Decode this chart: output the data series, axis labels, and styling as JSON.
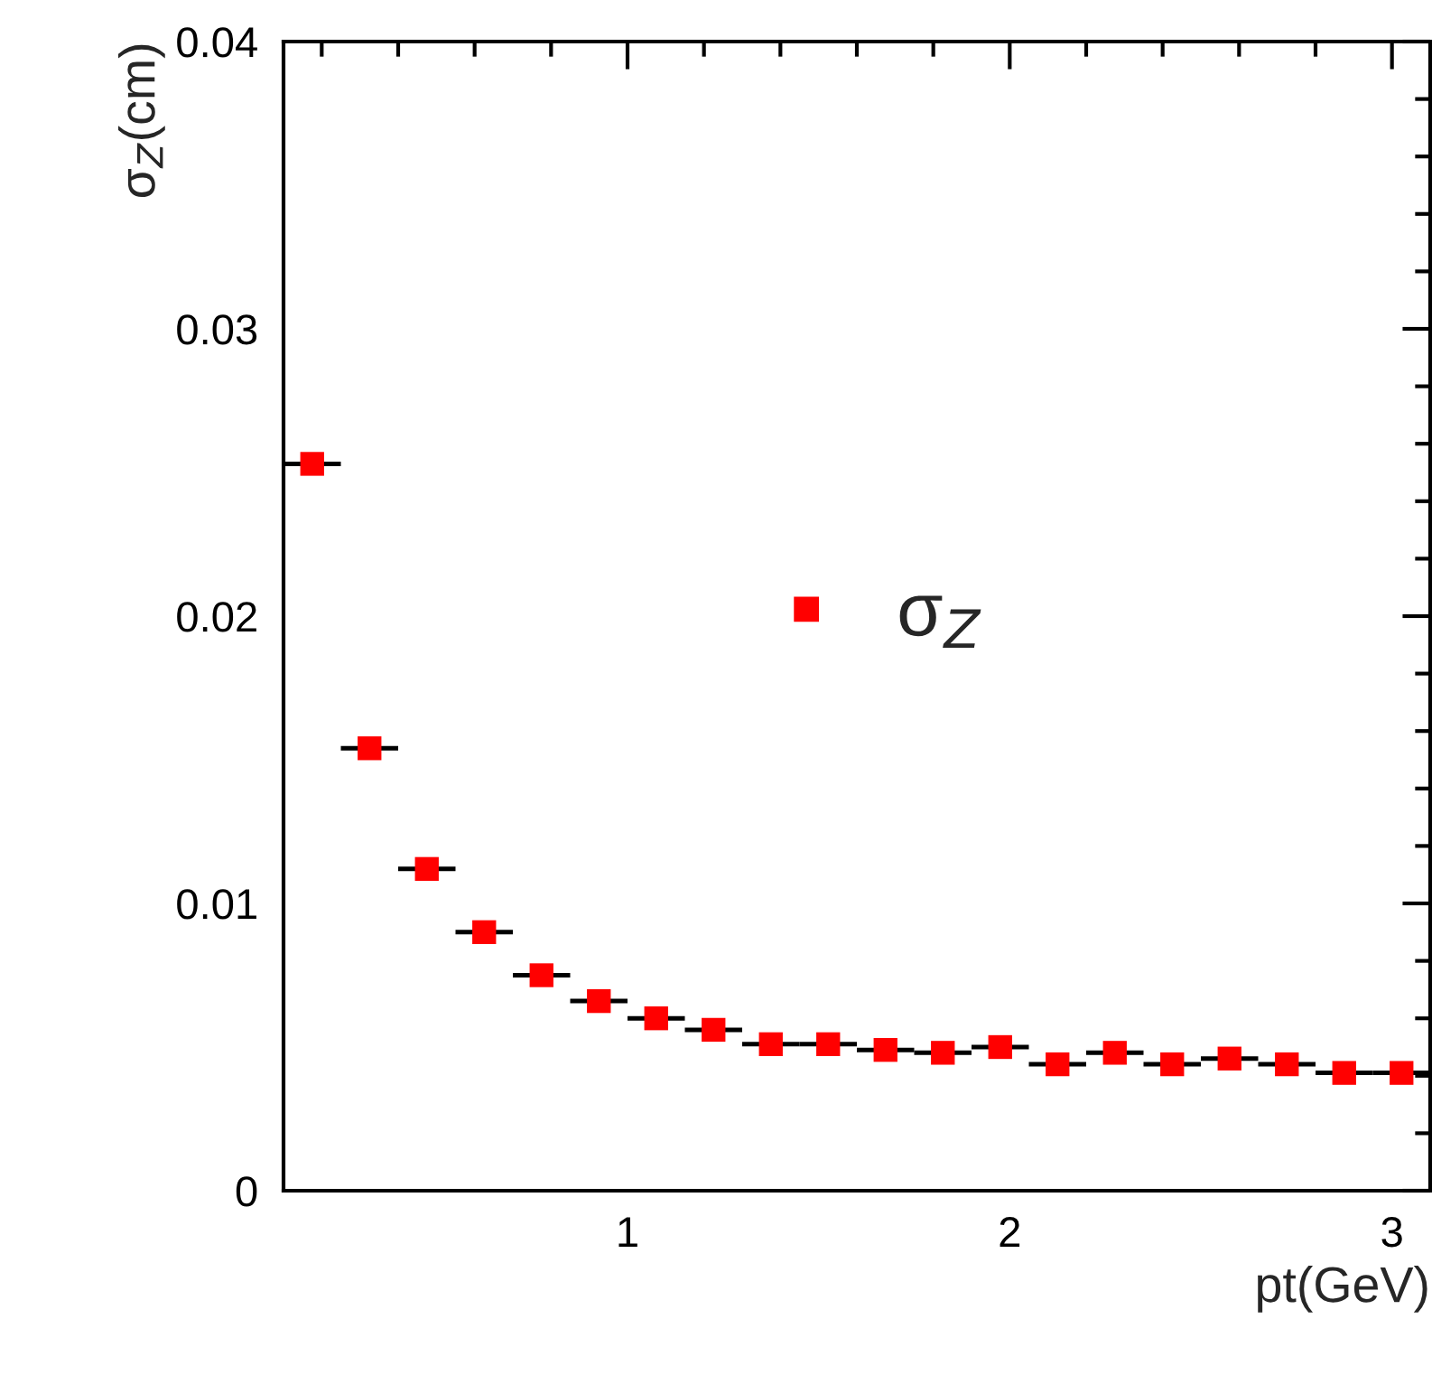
{
  "chart_data": {
    "type": "scatter",
    "ylabel": "σ$_{Z}$(cm)",
    "xlabel": "pt(GeV)",
    "x": [
      0.175,
      0.325,
      0.475,
      0.625,
      0.775,
      0.925,
      1.075,
      1.225,
      1.375,
      1.525,
      1.675,
      1.825,
      1.975,
      2.125,
      2.275,
      2.425,
      2.575,
      2.725,
      2.875,
      3.025
    ],
    "series": [
      {
        "name": "σ$_{Z}$",
        "color": "#ff0000",
        "values": [
          0.0253,
          0.0154,
          0.0112,
          0.009,
          0.0075,
          0.0066,
          0.006,
          0.0056,
          0.0051,
          0.0051,
          0.0049,
          0.0048,
          0.005,
          0.0044,
          0.0048,
          0.0044,
          0.0046,
          0.0044,
          0.0041,
          0.0041
        ],
        "xerrors": [
          0.075,
          0.075,
          0.075,
          0.075,
          0.075,
          0.075,
          0.075,
          0.075,
          0.075,
          0.075,
          0.075,
          0.075,
          0.075,
          0.075,
          0.075,
          0.075,
          0.075,
          0.075,
          0.075,
          0.075
        ]
      }
    ],
    "marker": "square",
    "legend": "center",
    "xlim": [
      0.1,
      3.1
    ],
    "ylim": [
      0,
      0.04
    ],
    "xticks": [
      {
        "value": 0.2,
        "label": null
      },
      {
        "value": 0.4,
        "label": null
      },
      {
        "value": 0.6,
        "label": null
      },
      {
        "value": 0.8,
        "label": null
      },
      1,
      {
        "value": 1.2,
        "label": null
      },
      {
        "value": 1.4,
        "label": null
      },
      {
        "value": 1.6,
        "label": null
      },
      {
        "value": 1.8,
        "label": null
      },
      2,
      {
        "value": 2.2,
        "label": null
      },
      {
        "value": 2.4,
        "label": null
      },
      {
        "value": 2.6,
        "label": null
      },
      {
        "value": 2.8,
        "label": null
      },
      3
    ],
    "yticks": [
      0,
      {
        "value": 0.002,
        "label": null
      },
      {
        "value": 0.004,
        "label": null
      },
      {
        "value": 0.006,
        "label": null
      },
      {
        "value": 0.008,
        "label": null
      },
      0.01,
      {
        "value": 0.012,
        "label": null
      },
      {
        "value": 0.014,
        "label": null
      },
      {
        "value": 0.016,
        "label": null
      },
      {
        "value": 0.018,
        "label": null
      },
      0.02,
      {
        "value": 0.022,
        "label": null
      },
      {
        "value": 0.024,
        "label": null
      },
      {
        "value": 0.026,
        "label": null
      },
      {
        "value": 0.028,
        "label": null
      },
      0.03,
      {
        "value": 0.032,
        "label": null
      },
      {
        "value": 0.034,
        "label": null
      },
      {
        "value": 0.036,
        "label": null
      },
      {
        "value": 0.038,
        "label": null
      },
      0.04
    ]
  }
}
